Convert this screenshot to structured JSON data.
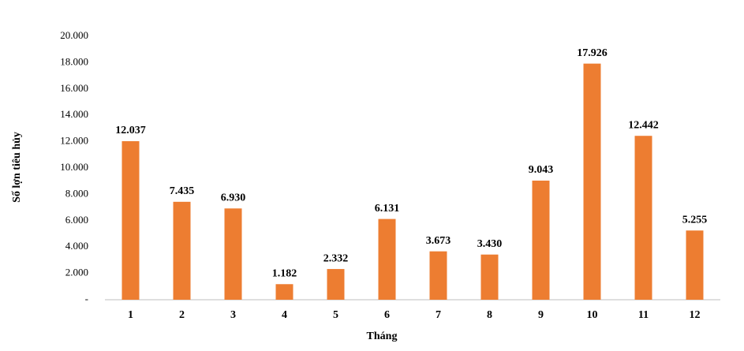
{
  "chart_data": {
    "type": "bar",
    "y_label": "Số lợn tiêu hủy",
    "x_label": "Tháng",
    "categories": [
      "1",
      "2",
      "3",
      "4",
      "5",
      "6",
      "7",
      "8",
      "9",
      "10",
      "11",
      "12"
    ],
    "values": [
      12037,
      7435,
      6930,
      1182,
      2332,
      6131,
      3673,
      3430,
      9043,
      17926,
      12442,
      5255
    ],
    "value_labels": [
      "12.037",
      "7.435",
      "6.930",
      "1.182",
      "2.332",
      "6.131",
      "3.673",
      "3.430",
      "9.043",
      "17.926",
      "12.442",
      "5.255"
    ],
    "color": "#ed7d31",
    "ylim": [
      0,
      20000
    ],
    "yticks": [
      {
        "value": 0,
        "label": "-"
      },
      {
        "value": 2000,
        "label": "2.000"
      },
      {
        "value": 4000,
        "label": "4.000"
      },
      {
        "value": 6000,
        "label": "6.000"
      },
      {
        "value": 8000,
        "label": "8.000"
      },
      {
        "value": 10000,
        "label": "10.000"
      },
      {
        "value": 12000,
        "label": "12.000"
      },
      {
        "value": 14000,
        "label": "14.000"
      },
      {
        "value": 16000,
        "label": "16.000"
      },
      {
        "value": 18000,
        "label": "18.000"
      },
      {
        "value": 20000,
        "label": "20.000"
      }
    ],
    "grid": false
  }
}
